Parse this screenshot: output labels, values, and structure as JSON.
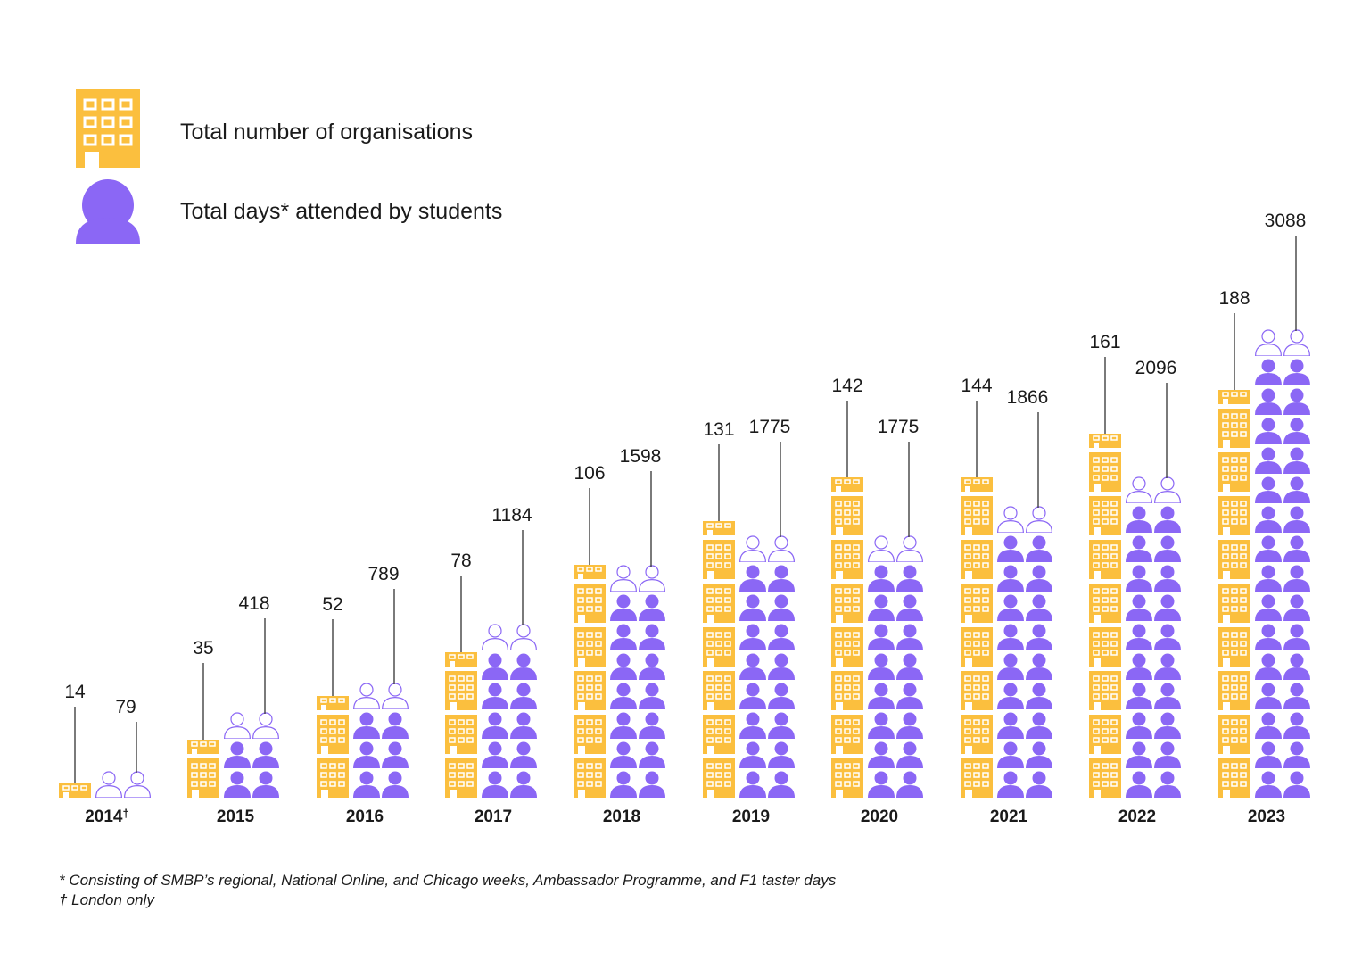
{
  "colors": {
    "organisations": "#FBBF3E",
    "students": "#8B67F5",
    "text": "#1a1a1a",
    "leader": "#333333"
  },
  "legend": {
    "organisations_label": "Total number of organisations",
    "organisations_icon": "building-icon",
    "students_label": "Total days* attended by students",
    "students_icon": "person-icon"
  },
  "chart_data": {
    "type": "bar",
    "title": "",
    "xlabel": "",
    "ylabel": "",
    "categories": [
      "2014",
      "2015",
      "2016",
      "2017",
      "2018",
      "2019",
      "2020",
      "2021",
      "2022",
      "2023"
    ],
    "category_suffix": [
      "†",
      "",
      "",
      "",
      "",
      "",
      "",
      "",
      "",
      ""
    ],
    "series": [
      {
        "name": "Total number of organisations",
        "values": [
          14,
          35,
          52,
          78,
          106,
          131,
          142,
          144,
          161,
          188
        ]
      },
      {
        "name": "Total days* attended by students",
        "values": [
          79,
          418,
          789,
          1184,
          1598,
          1775,
          1775,
          1866,
          2096,
          3088
        ]
      }
    ],
    "units_per_icon": {
      "organisations": 20,
      "students": 200
    }
  },
  "footnotes": {
    "asterisk": "* Consisting of SMBP’s regional, National Online, and Chicago weeks, Ambassador Programme, and F1 taster days",
    "dagger": "† London only"
  }
}
